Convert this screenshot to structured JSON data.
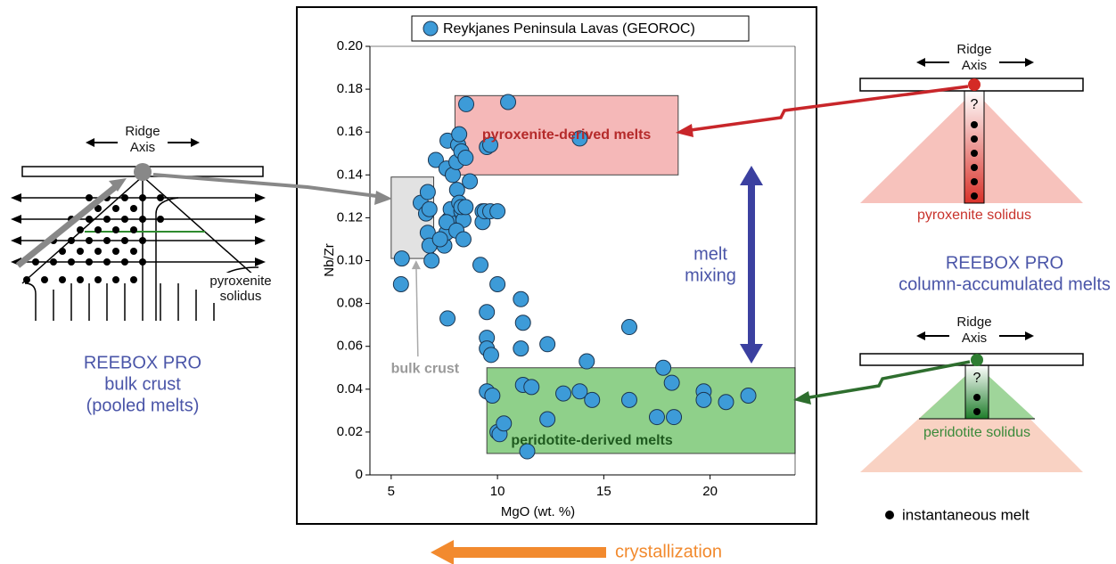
{
  "chart_data": {
    "type": "scatter",
    "legend": "Reykjanes Peninsula Lavas (GEOROC)",
    "x_label": "MgO (wt. %)",
    "y_label": "Nb/Zr",
    "xlim": [
      4,
      24
    ],
    "xticks": [
      5,
      10,
      15,
      20
    ],
    "ylim": [
      0,
      0.2
    ],
    "yticks": [
      {
        "value": 0,
        "label": "0"
      },
      {
        "value": 0.02,
        "label": "0.02"
      },
      {
        "value": 0.04,
        "label": "0.04"
      },
      {
        "value": 0.06,
        "label": "0.06"
      },
      {
        "value": 0.08,
        "label": "0.08"
      },
      {
        "value": 0.1,
        "label": "0.10"
      },
      {
        "value": 0.12,
        "label": "0.12"
      },
      {
        "value": 0.14,
        "label": "0.14"
      },
      {
        "value": 0.16,
        "label": "0.16"
      },
      {
        "value": 0.18,
        "label": "0.18"
      },
      {
        "value": 0.2,
        "label": "0.20"
      }
    ],
    "color": "#3d9bd8",
    "x": [
      5.46,
      5.5,
      6.39,
      6.64,
      6.72,
      6.8,
      6.72,
      6.8,
      6.9,
      7.5,
      7.6,
      7.7,
      7.8,
      7.6,
      7.3,
      7.1,
      7.65,
      7.6,
      7.9,
      8.07,
      8.15,
      8.2,
      8.3,
      8.5,
      8.1,
      8.2,
      8.3,
      8.4,
      8.07,
      8.3,
      8.5,
      7.65,
      8.53,
      8.7,
      8.4,
      9.2,
      9.3,
      9.3,
      9.4,
      9.66,
      10.0,
      9.5,
      9.66,
      10.5,
      13.87,
      10.0,
      9.5,
      9.5,
      9.5,
      9.7,
      11.1,
      11.2,
      11.1,
      12.35,
      14.2,
      16.2,
      9.5,
      9.76,
      10.0,
      10.1,
      10.3,
      11.2,
      11.6,
      11.4,
      12.35,
      13.1,
      13.87,
      14.45,
      16.2,
      17.5,
      17.8,
      18.2,
      18.3,
      19.7,
      19.7,
      20.75,
      21.8
    ],
    "values": [
      0.089,
      0.101,
      0.127,
      0.122,
      0.132,
      0.124,
      0.113,
      0.107,
      0.1,
      0.107,
      0.113,
      0.119,
      0.124,
      0.118,
      0.11,
      0.147,
      0.156,
      0.143,
      0.14,
      0.146,
      0.154,
      0.159,
      0.151,
      0.148,
      0.133,
      0.127,
      0.123,
      0.119,
      0.114,
      0.125,
      0.125,
      0.073,
      0.173,
      0.137,
      0.11,
      0.098,
      0.123,
      0.118,
      0.123,
      0.123,
      0.123,
      0.153,
      0.154,
      0.174,
      0.157,
      0.089,
      0.076,
      0.064,
      0.059,
      0.056,
      0.082,
      0.071,
      0.059,
      0.061,
      0.053,
      0.069,
      0.039,
      0.037,
      0.02,
      0.019,
      0.024,
      0.042,
      0.041,
      0.011,
      0.026,
      0.038,
      0.039,
      0.035,
      0.035,
      0.027,
      0.05,
      0.043,
      0.027,
      0.039,
      0.035,
      0.034,
      0.037
    ],
    "regions": [
      {
        "label": "pyroxenite-derived melts",
        "color": "#f5b8b8",
        "text_color": "#b52a2a",
        "x_range": [
          8,
          18.5
        ],
        "y_range": [
          0.14,
          0.177
        ]
      },
      {
        "label": "peridotite-derived melts",
        "color": "#8fd08a",
        "text_color": "#1f5a1f",
        "x_range": [
          9.5,
          24
        ],
        "y_range": [
          0.01,
          0.05
        ]
      },
      {
        "label": "bulk crust",
        "color": "#e2e2e2",
        "text_color": "#9a9a9a",
        "x_range": [
          5,
          7
        ],
        "y_range": [
          0.101,
          0.139
        ]
      }
    ]
  },
  "left_panel": {
    "ridge_axis": [
      "Ridge",
      "Axis"
    ],
    "solidus": [
      "pyroxenite",
      "solidus"
    ],
    "caption": [
      "REEBOX PRO",
      "bulk crust",
      "(pooled melts)"
    ]
  },
  "right_top": {
    "ridge_axis": [
      "Ridge",
      "Axis"
    ],
    "question": "?",
    "solidus": "pyroxenite solidus",
    "caption": [
      "REEBOX PRO",
      "column-accumulated melts"
    ]
  },
  "right_bottom": {
    "ridge_axis": [
      "Ridge",
      "Axis"
    ],
    "question": "?",
    "solidus": "peridotite solidus",
    "legend": "instantaneous melt"
  },
  "annotations": {
    "melt_mixing": [
      "melt",
      "mixing"
    ],
    "crystallization": "crystallization"
  }
}
